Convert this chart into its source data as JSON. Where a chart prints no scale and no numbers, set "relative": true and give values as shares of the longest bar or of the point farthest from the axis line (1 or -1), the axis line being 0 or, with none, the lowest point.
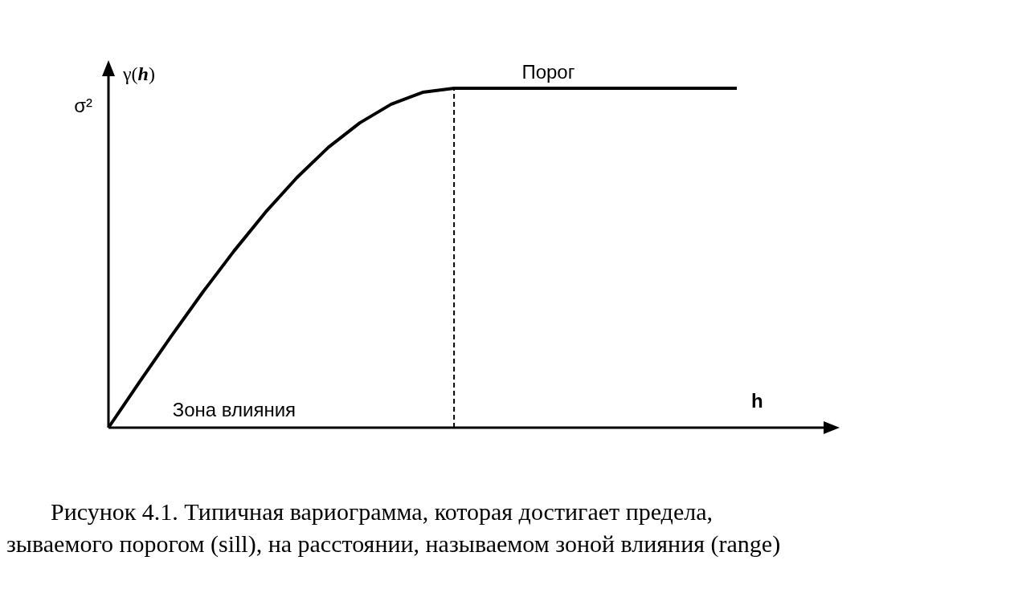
{
  "chart_data": {
    "type": "line",
    "relative": true,
    "ylabel": "γ(h)",
    "xlabel": "h",
    "categories": [
      null,
      null,
      null,
      null,
      null,
      null,
      null,
      null,
      null,
      null,
      null,
      null,
      null,
      null,
      null,
      null,
      null,
      null,
      null,
      null,
      null
    ],
    "series": [
      {
        "color": "#000000",
        "values": [
          0,
          0.136,
          0.27,
          0.399,
          0.521,
          0.635,
          0.737,
          0.826,
          0.898,
          0.953,
          0.988,
          1,
          1,
          1,
          1,
          1,
          1,
          1,
          1,
          1,
          1
        ]
      }
    ],
    "annotations": [
      "σ²",
      "Порог",
      "Зона влияния",
      "Рисунок 4.1. Типичная вариограмма, которая достигает предела,",
      "зываемого порогом (sill), на расстоянии, называемом зоной влияния (range)"
    ],
    "grid": false,
    "marker": "none",
    "line_style": "solid"
  }
}
